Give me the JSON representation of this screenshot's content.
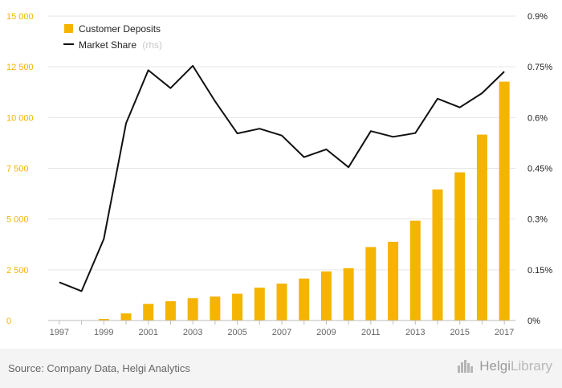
{
  "chart_data": {
    "type": "bar",
    "x": [
      1997,
      1998,
      1999,
      2000,
      2001,
      2002,
      2003,
      2004,
      2005,
      2006,
      2007,
      2008,
      2009,
      2010,
      2011,
      2012,
      2013,
      2014,
      2015,
      2016,
      2017
    ],
    "x_tick_labels": [
      "1997",
      "1999",
      "2001",
      "2003",
      "2005",
      "2007",
      "2009",
      "2011",
      "2013",
      "2015",
      "2017"
    ],
    "series": [
      {
        "name": "Customer Deposits",
        "type": "bar",
        "axis": "left",
        "color": "#f5b400",
        "values": [
          0,
          0,
          80,
          350,
          820,
          950,
          1100,
          1180,
          1320,
          1620,
          1820,
          2070,
          2420,
          2580,
          3620,
          3880,
          4920,
          6460,
          7300,
          9160,
          11770
        ]
      },
      {
        "name": "Market Share",
        "name_suffix": "(rhs)",
        "type": "line",
        "axis": "right",
        "color": "#111111",
        "values": [
          0.113,
          0.087,
          0.241,
          0.583,
          0.74,
          0.687,
          0.753,
          0.648,
          0.553,
          0.567,
          0.547,
          0.483,
          0.506,
          0.453,
          0.56,
          0.543,
          0.554,
          0.656,
          0.63,
          0.672,
          0.736
        ]
      }
    ],
    "left_axis": {
      "range": [
        0,
        15000
      ],
      "ticks": [
        0,
        2500,
        5000,
        7500,
        10000,
        12500,
        15000
      ],
      "tick_labels": [
        "0",
        "2 500",
        "5 000",
        "7 500",
        "10 000",
        "12 500",
        "15 000"
      ],
      "color": "#f5b400"
    },
    "right_axis": {
      "range": [
        0,
        0.9
      ],
      "ticks": [
        0,
        0.15,
        0.3,
        0.45,
        0.6,
        0.75,
        0.9
      ],
      "tick_labels": [
        "0%",
        "0.15%",
        "0.3%",
        "0.45%",
        "0.6%",
        "0.75%",
        "0.9%"
      ],
      "color": "#222222"
    },
    "grid": true,
    "legend_position": "top-left"
  },
  "footer": {
    "source": "Source: Company Data, Helgi Analytics",
    "logo_a": "Helgi",
    "logo_b": "Library"
  }
}
